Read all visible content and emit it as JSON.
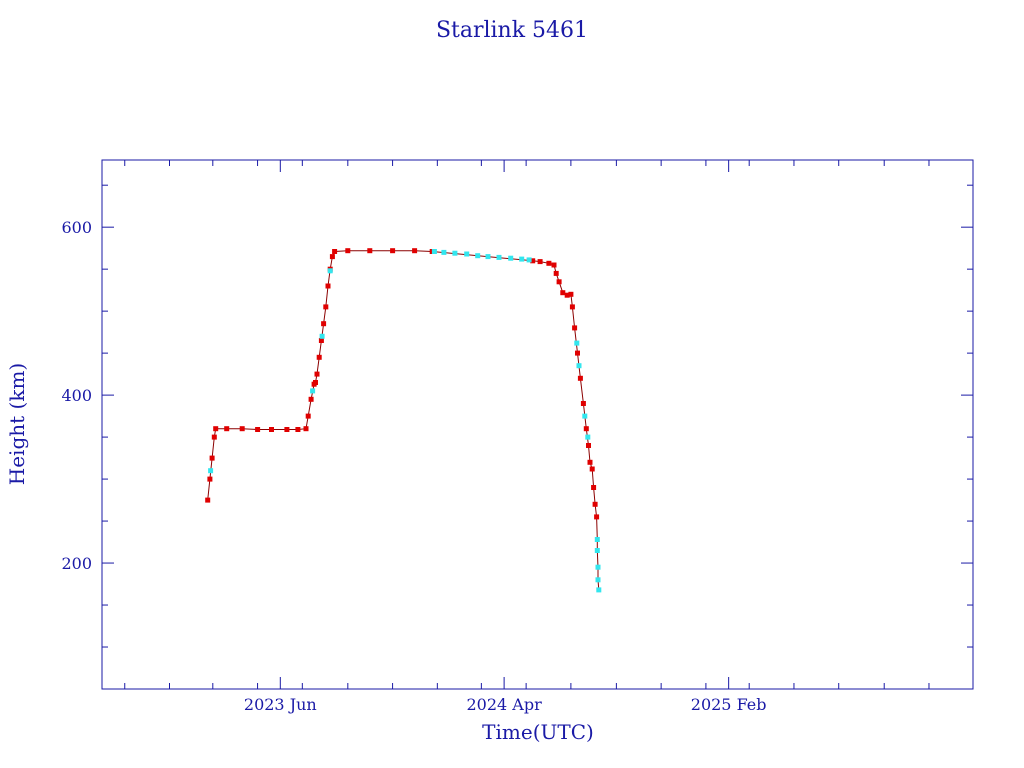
{
  "chart_data": {
    "type": "scatter",
    "title": "Starlink 5461",
    "xlabel": "Time(UTC)",
    "ylabel": "Height (km)",
    "x_type": "date",
    "xlim": [
      "2022-10-01",
      "2025-12-31"
    ],
    "ylim": [
      50,
      680
    ],
    "x_ticks": [
      {
        "value": "2023-06-01",
        "label": "2023 Jun"
      },
      {
        "value": "2024-04-01",
        "label": "2024 Apr"
      },
      {
        "value": "2025-02-01",
        "label": "2025 Feb"
      }
    ],
    "x_minor_ticks": [
      "2022-11-01",
      "2023-01-01",
      "2023-03-01",
      "2023-05-01",
      "2023-07-01",
      "2023-09-01",
      "2023-11-01",
      "2024-01-01",
      "2024-03-01",
      "2024-05-01",
      "2024-07-01",
      "2024-09-01",
      "2024-11-01",
      "2025-01-01",
      "2025-03-01",
      "2025-05-01",
      "2025-07-01",
      "2025-09-01",
      "2025-11-01"
    ],
    "y_ticks": [
      {
        "value": 200,
        "label": "200"
      },
      {
        "value": 400,
        "label": "400"
      },
      {
        "value": 600,
        "label": "600"
      }
    ],
    "y_minor_ticks": [
      100,
      150,
      250,
      300,
      350,
      450,
      500,
      550,
      650
    ],
    "colors": {
      "axis": "#1a1aa6",
      "line": "#8b0000",
      "primary": "#e00000",
      "secondary": "#33e6ee"
    },
    "series": [
      {
        "points": [
          [
            "2023-02-22",
            275
          ],
          [
            "2023-02-25",
            300
          ],
          [
            "2023-02-28",
            325
          ],
          [
            "2023-03-03",
            350
          ],
          [
            "2023-03-05",
            360
          ],
          [
            "2023-03-20",
            360
          ],
          [
            "2023-04-10",
            360
          ],
          [
            "2023-05-01",
            359
          ],
          [
            "2023-05-20",
            359
          ],
          [
            "2023-06-10",
            359
          ],
          [
            "2023-06-25",
            359
          ],
          [
            "2023-07-06",
            360
          ],
          [
            "2023-07-09",
            375
          ],
          [
            "2023-07-13",
            395
          ],
          [
            "2023-07-17",
            413
          ],
          [
            "2023-07-19",
            415
          ],
          [
            "2023-07-21",
            425
          ],
          [
            "2023-07-24",
            445
          ],
          [
            "2023-07-27",
            465
          ],
          [
            "2023-07-30",
            485
          ],
          [
            "2023-08-02",
            505
          ],
          [
            "2023-08-05",
            530
          ],
          [
            "2023-08-08",
            550
          ],
          [
            "2023-08-11",
            565
          ],
          [
            "2023-08-14",
            571
          ],
          [
            "2023-09-01",
            572
          ],
          [
            "2023-10-01",
            572
          ],
          [
            "2023-11-01",
            572
          ],
          [
            "2023-12-01",
            572
          ],
          [
            "2023-12-25",
            571
          ],
          [
            "2024-05-10",
            560
          ],
          [
            "2024-05-20",
            559
          ],
          [
            "2024-06-01",
            557
          ],
          [
            "2024-06-08",
            555
          ],
          [
            "2024-06-11",
            545
          ],
          [
            "2024-06-15",
            535
          ],
          [
            "2024-06-20",
            522
          ],
          [
            "2024-06-26",
            519
          ],
          [
            "2024-07-01",
            520
          ],
          [
            "2024-07-03",
            505
          ],
          [
            "2024-07-06",
            480
          ],
          [
            "2024-07-10",
            450
          ],
          [
            "2024-07-14",
            420
          ],
          [
            "2024-07-18",
            390
          ],
          [
            "2024-07-22",
            360
          ],
          [
            "2024-07-25",
            340
          ],
          [
            "2024-07-27",
            320
          ],
          [
            "2024-07-30",
            312
          ],
          [
            "2024-08-01",
            290
          ],
          [
            "2024-08-03",
            270
          ],
          [
            "2024-08-05",
            255
          ]
        ]
      },
      {
        "points": [
          [
            "2023-02-26",
            310
          ],
          [
            "2023-07-15",
            405
          ],
          [
            "2023-07-28",
            470
          ],
          [
            "2023-08-08",
            548
          ],
          [
            "2023-12-28",
            571
          ],
          [
            "2024-01-10",
            570
          ],
          [
            "2024-01-25",
            569
          ],
          [
            "2024-02-10",
            568
          ],
          [
            "2024-02-25",
            566
          ],
          [
            "2024-03-10",
            565
          ],
          [
            "2024-03-25",
            564
          ],
          [
            "2024-04-10",
            563
          ],
          [
            "2024-04-25",
            562
          ],
          [
            "2024-05-05",
            561
          ],
          [
            "2024-07-09",
            462
          ],
          [
            "2024-07-12",
            435
          ],
          [
            "2024-07-20",
            375
          ],
          [
            "2024-07-24",
            350
          ],
          [
            "2024-08-06",
            228
          ],
          [
            "2024-08-06",
            215
          ],
          [
            "2024-08-07",
            195
          ],
          [
            "2024-08-07",
            180
          ],
          [
            "2024-08-08",
            168
          ]
        ]
      }
    ]
  }
}
